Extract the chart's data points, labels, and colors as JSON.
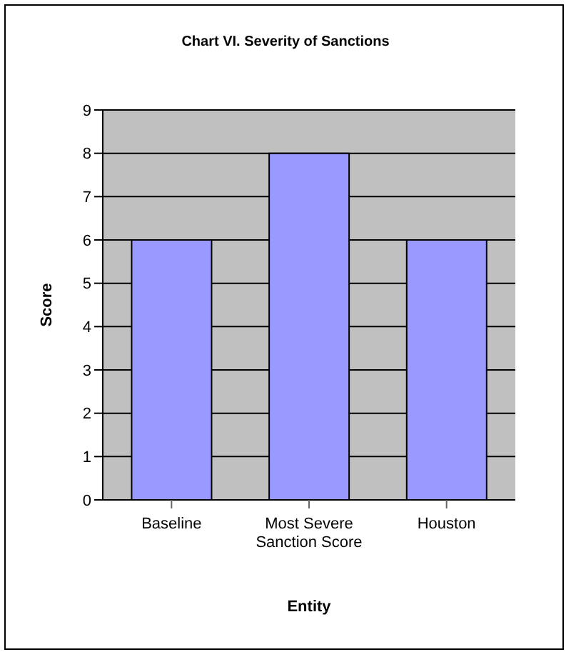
{
  "chart_data": {
    "type": "bar",
    "title": "Chart VI. Severity of Sanctions",
    "xlabel": "Entity",
    "ylabel": "Score",
    "categories": [
      "Baseline",
      "Most Severe Sanction Score",
      "Houston"
    ],
    "values": [
      6,
      8,
      6
    ],
    "color": "#9999ff",
    "ylim": [
      0,
      9
    ],
    "yticks": [
      0,
      1,
      2,
      3,
      4,
      5,
      6,
      7,
      8,
      9
    ],
    "grid": "y",
    "legend": false
  }
}
